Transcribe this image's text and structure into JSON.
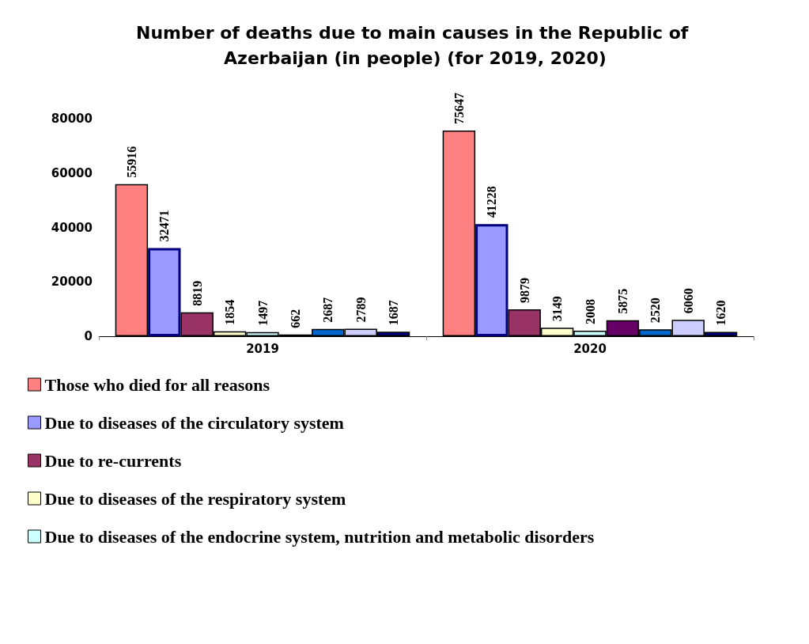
{
  "chart_data": {
    "type": "bar",
    "title": "Number of deaths due to main causes in the Republic of Azerbaijan (in people) (for 2019, 2020)",
    "categories": [
      "2019",
      "2020"
    ],
    "series": [
      {
        "name": "Those who died for all reasons",
        "color": "#ff8080",
        "values": [
          55916,
          75647
        ]
      },
      {
        "name": "Due to diseases of the circulatory system",
        "color": "#9999ff",
        "values": [
          32471,
          41228
        ]
      },
      {
        "name": "Due to re-currents",
        "color": "#993366",
        "values": [
          8819,
          9879
        ]
      },
      {
        "name": "Due to diseases of the respiratory system",
        "color": "#ffffcc",
        "values": [
          1854,
          3149
        ]
      },
      {
        "name": "Due to diseases of the endocrine system, nutrition and metabolic disorders",
        "color": "#ccffff",
        "values": [
          1497,
          2008
        ]
      },
      {
        "color": "#660066",
        "values": [
          662,
          5875
        ]
      },
      {
        "color": "#0066cc",
        "values": [
          2687,
          2520
        ]
      },
      {
        "color": "#ccccff",
        "values": [
          2789,
          6060
        ]
      },
      {
        "color": "#000080",
        "values": [
          1687,
          1620
        ]
      }
    ],
    "ylim": [
      0,
      80000
    ],
    "yticks": [
      0,
      20000,
      40000,
      60000,
      80000
    ],
    "data_labels": true,
    "legend": "bottom",
    "grid": false
  }
}
